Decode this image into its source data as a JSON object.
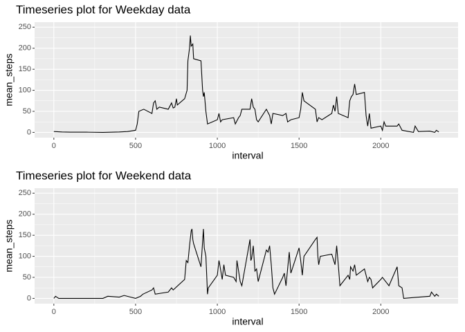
{
  "chart_data": [
    {
      "type": "line",
      "title": "Timeseries plot for Weekday data",
      "x_label": "interval",
      "y_label": "mean_steps",
      "x": [
        0,
        50,
        100,
        200,
        300,
        400,
        450,
        500,
        510,
        520,
        550,
        600,
        610,
        620,
        630,
        645,
        700,
        720,
        730,
        740,
        750,
        755,
        800,
        815,
        820,
        830,
        835,
        840,
        850,
        855,
        900,
        910,
        915,
        920,
        930,
        940,
        1000,
        1010,
        1020,
        1030,
        1100,
        1110,
        1130,
        1140,
        1150,
        1200,
        1210,
        1220,
        1230,
        1240,
        1250,
        1300,
        1320,
        1330,
        1340,
        1400,
        1420,
        1430,
        1450,
        1500,
        1510,
        1520,
        1530,
        1600,
        1610,
        1620,
        1640,
        1700,
        1710,
        1720,
        1730,
        1740,
        1800,
        1810,
        1820,
        1830,
        1840,
        1850,
        1900,
        1910,
        1920,
        1930,
        1940,
        2000,
        2010,
        2020,
        2030,
        2100,
        2110,
        2130,
        2200,
        2210,
        2230,
        2300,
        2330,
        2340,
        2355
      ],
      "values": [
        2,
        1,
        0.5,
        0.5,
        0,
        1,
        2,
        5,
        20,
        50,
        55,
        45,
        70,
        75,
        55,
        60,
        55,
        70,
        58,
        60,
        80,
        65,
        80,
        100,
        170,
        200,
        230,
        205,
        210,
        175,
        170,
        100,
        85,
        95,
        50,
        20,
        30,
        45,
        25,
        30,
        35,
        20,
        35,
        40,
        55,
        55,
        80,
        60,
        55,
        30,
        25,
        55,
        40,
        20,
        45,
        40,
        45,
        25,
        30,
        35,
        55,
        95,
        75,
        55,
        25,
        35,
        30,
        45,
        65,
        50,
        85,
        45,
        35,
        75,
        85,
        90,
        115,
        90,
        95,
        40,
        15,
        45,
        10,
        15,
        5,
        25,
        15,
        15,
        20,
        5,
        0,
        15,
        2,
        3,
        0,
        5,
        1
      ],
      "color": "#000000",
      "xlim": [
        -117.75,
        2472.75
      ],
      "ylim": [
        -12.5,
        262
      ],
      "xticks": [
        0,
        500,
        1000,
        1500,
        2000
      ],
      "yticks": [
        0,
        50,
        100,
        150,
        200,
        250
      ],
      "grid": true
    },
    {
      "type": "line",
      "title": "Timeseries plot for Weekend data",
      "x_label": "interval",
      "y_label": "mean_steps",
      "x": [
        0,
        10,
        30,
        100,
        300,
        330,
        400,
        430,
        500,
        530,
        545,
        600,
        610,
        620,
        700,
        720,
        730,
        800,
        810,
        820,
        830,
        840,
        845,
        850,
        855,
        900,
        915,
        920,
        930,
        940,
        945,
        1000,
        1010,
        1015,
        1030,
        1040,
        1050,
        1100,
        1115,
        1120,
        1130,
        1140,
        1150,
        1200,
        1205,
        1210,
        1220,
        1230,
        1240,
        1250,
        1300,
        1310,
        1320,
        1330,
        1340,
        1350,
        1400,
        1410,
        1420,
        1430,
        1440,
        1450,
        1500,
        1510,
        1520,
        1530,
        1600,
        1610,
        1615,
        1620,
        1630,
        1700,
        1720,
        1730,
        1740,
        1750,
        1800,
        1810,
        1815,
        1830,
        1840,
        1850,
        1900,
        1920,
        1930,
        1940,
        1950,
        2000,
        2010,
        2030,
        2040,
        2050,
        2100,
        2110,
        2130,
        2140,
        2200,
        2300,
        2310,
        2320,
        2330,
        2340,
        2355
      ],
      "values": [
        0,
        5,
        0,
        0,
        0,
        5,
        3,
        7,
        0,
        5,
        10,
        20,
        25,
        10,
        15,
        25,
        20,
        45,
        90,
        85,
        125,
        160,
        165,
        140,
        130,
        75,
        165,
        120,
        100,
        10,
        25,
        55,
        90,
        80,
        45,
        80,
        55,
        50,
        40,
        90,
        65,
        40,
        30,
        140,
        90,
        95,
        125,
        65,
        70,
        40,
        115,
        110,
        125,
        80,
        25,
        10,
        50,
        60,
        30,
        70,
        110,
        60,
        120,
        90,
        55,
        100,
        140,
        145,
        100,
        80,
        100,
        105,
        80,
        125,
        80,
        30,
        55,
        45,
        75,
        65,
        80,
        55,
        70,
        40,
        50,
        45,
        25,
        45,
        50,
        40,
        35,
        30,
        75,
        30,
        25,
        0,
        2,
        5,
        15,
        10,
        5,
        10,
        5
      ],
      "color": "#000000",
      "xlim": [
        -117.75,
        2472.75
      ],
      "ylim": [
        -12.5,
        262
      ],
      "xticks": [
        0,
        500,
        1000,
        1500,
        2000
      ],
      "yticks": [
        0,
        50,
        100,
        150,
        200,
        250
      ],
      "grid": true
    }
  ]
}
